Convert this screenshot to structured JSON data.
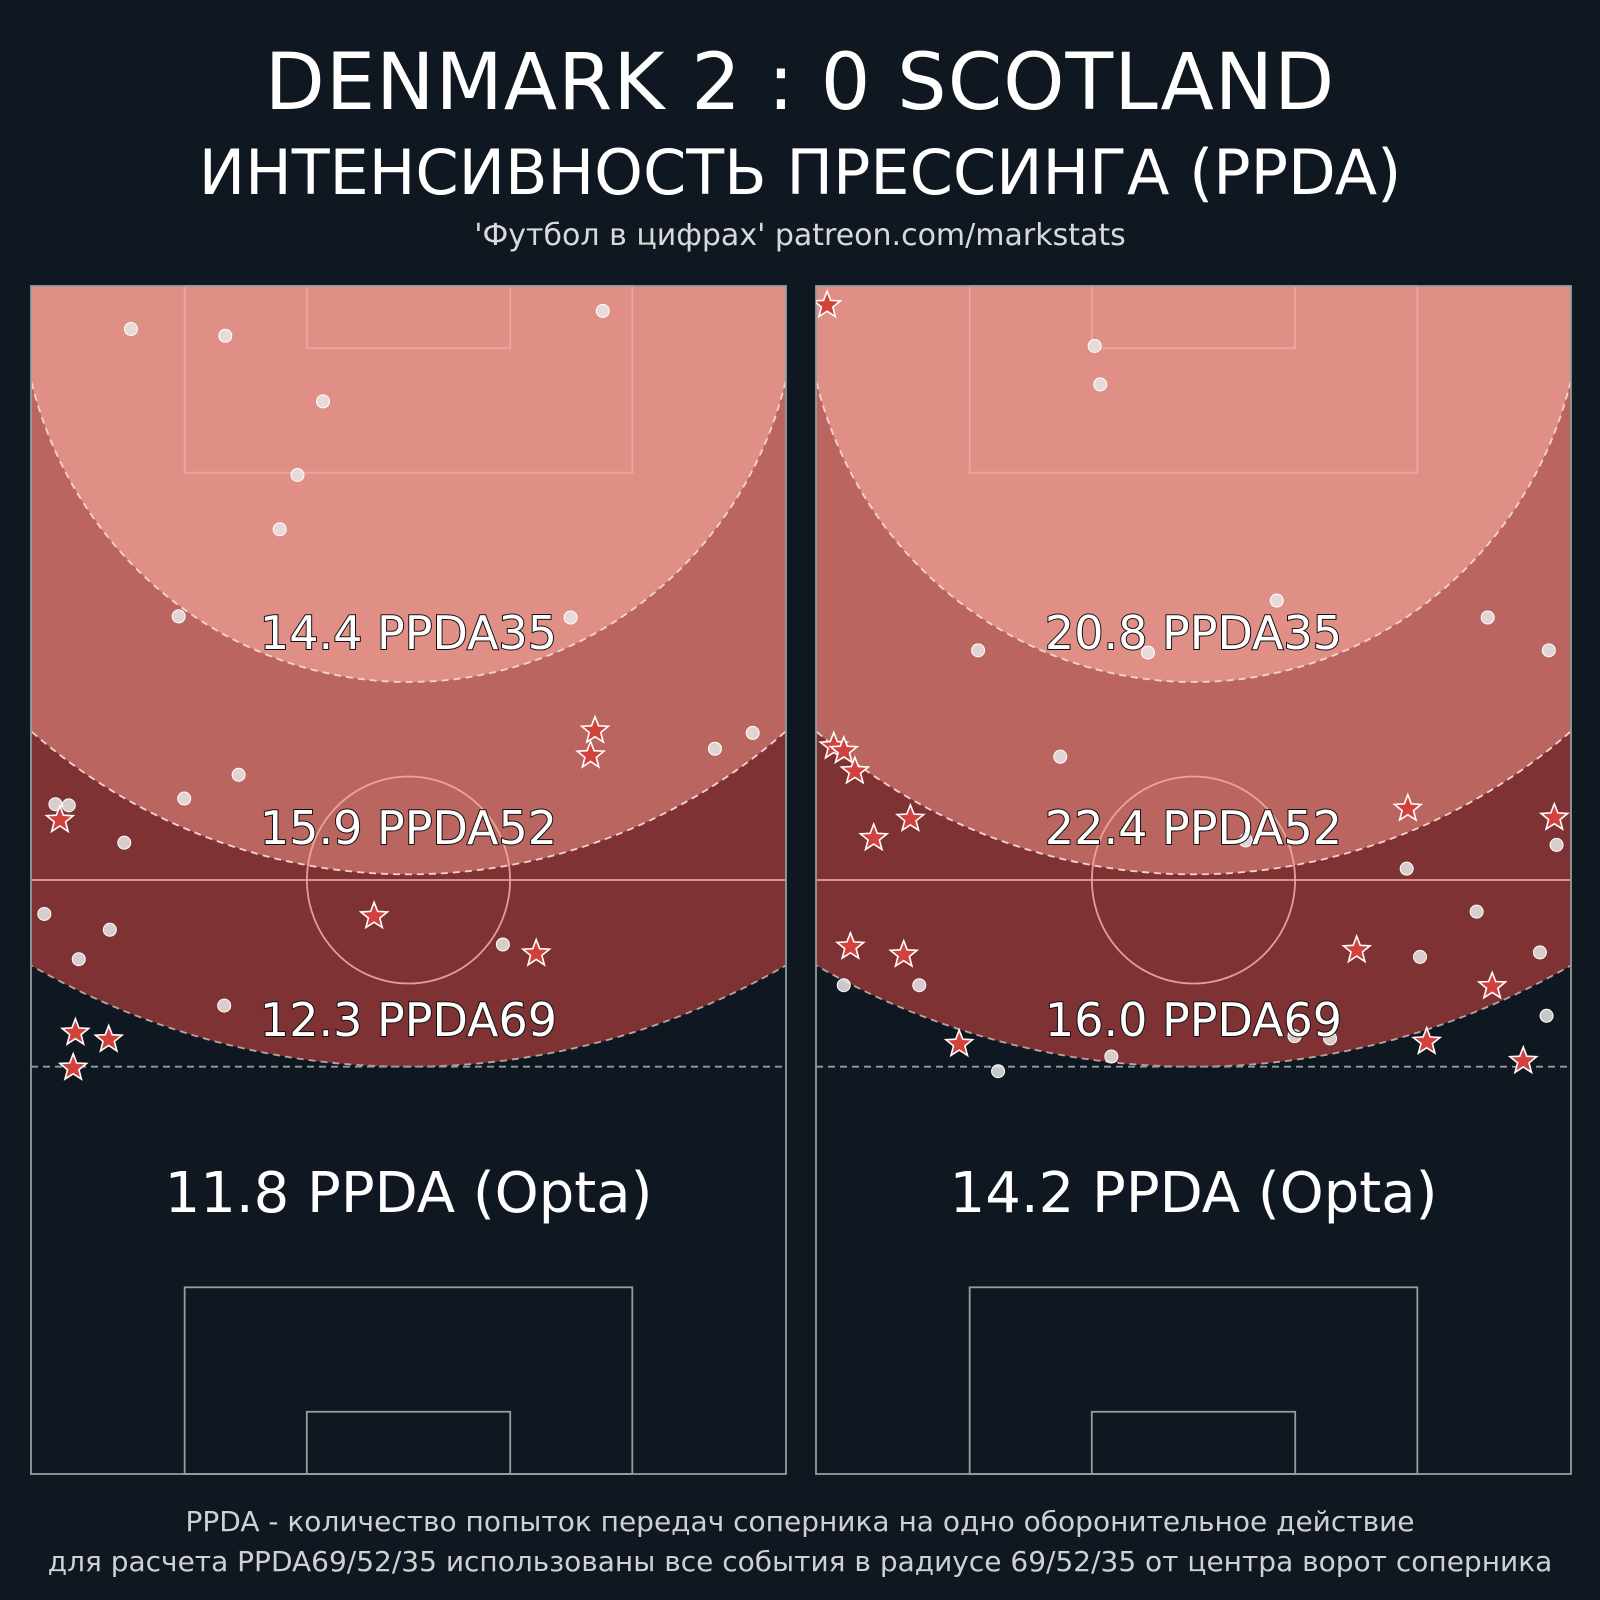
{
  "header": {
    "title": "DENMARK  2 : 0  SCOTLAND",
    "subtitle": "ИНТЕНСИВНОСТЬ ПРЕССИНГА (PPDA)",
    "credit": "'Футбол в цифрах' patreon.com/markstats"
  },
  "footer": {
    "line1": "PPDA - количество попыток передач соперника на одно оборонительное действие",
    "line2": "для расчета PPDA69/52/35 использованы все события в радиусе 69/52/35 от центра ворот соперника"
  },
  "colors": {
    "background": "#0f1821",
    "zone35": "#e08f87",
    "zone52": "#bb6561",
    "zone69": "#7e3234",
    "marker_circle": "#e8e8e8",
    "marker_star": "#d2423d",
    "pitch_lines": "#8fa0a0"
  },
  "chart_data": [
    {
      "type": "scatter",
      "team": "DENMARK",
      "zone_labels": {
        "ppda35": "14.4 PPDA35",
        "ppda52": "15.9 PPDA52",
        "ppda69": "12.3 PPDA69",
        "opta": "11.8 PPDA (Opta)"
      },
      "values": {
        "ppda35": 14.4,
        "ppda52": 15.9,
        "ppda69": 12.3,
        "opta": 11.8
      },
      "radii": [
        35,
        52,
        69
      ],
      "x_range": [
        0,
        68
      ],
      "y_range": [
        0,
        105
      ],
      "events": [
        {
          "x": 9,
          "y": 3.8,
          "kind": "circle"
        },
        {
          "x": 17.5,
          "y": 4.4,
          "kind": "circle"
        },
        {
          "x": 51.5,
          "y": 2.2,
          "kind": "circle"
        },
        {
          "x": 26.3,
          "y": 10.2,
          "kind": "circle"
        },
        {
          "x": 24,
          "y": 16.7,
          "kind": "circle"
        },
        {
          "x": 22.4,
          "y": 21.5,
          "kind": "circle"
        },
        {
          "x": 13.3,
          "y": 29.2,
          "kind": "circle"
        },
        {
          "x": 48.6,
          "y": 29.3,
          "kind": "circle"
        },
        {
          "x": 65,
          "y": 39.5,
          "kind": "circle"
        },
        {
          "x": 61.6,
          "y": 40.9,
          "kind": "circle"
        },
        {
          "x": 50.8,
          "y": 39.3,
          "kind": "star"
        },
        {
          "x": 50.4,
          "y": 41.5,
          "kind": "star"
        },
        {
          "x": 18.7,
          "y": 43.2,
          "kind": "circle"
        },
        {
          "x": 13.8,
          "y": 45.3,
          "kind": "circle"
        },
        {
          "x": 2.2,
          "y": 45.8,
          "kind": "circle"
        },
        {
          "x": 3.4,
          "y": 45.9,
          "kind": "circle"
        },
        {
          "x": 2.6,
          "y": 47.2,
          "kind": "star"
        },
        {
          "x": 8.4,
          "y": 49.2,
          "kind": "circle"
        },
        {
          "x": 1.2,
          "y": 55.5,
          "kind": "circle"
        },
        {
          "x": 7.1,
          "y": 56.9,
          "kind": "circle"
        },
        {
          "x": 30.9,
          "y": 55.7,
          "kind": "star"
        },
        {
          "x": 42.5,
          "y": 58.2,
          "kind": "circle"
        },
        {
          "x": 45.5,
          "y": 59.0,
          "kind": "star"
        },
        {
          "x": 4.3,
          "y": 59.5,
          "kind": "circle"
        },
        {
          "x": 17.4,
          "y": 63.6,
          "kind": "circle"
        },
        {
          "x": 4.0,
          "y": 66.0,
          "kind": "star"
        },
        {
          "x": 7.0,
          "y": 66.6,
          "kind": "star"
        },
        {
          "x": 3.8,
          "y": 69.1,
          "kind": "star"
        }
      ]
    },
    {
      "type": "scatter",
      "team": "SCOTLAND",
      "zone_labels": {
        "ppda35": "20.8 PPDA35",
        "ppda52": "22.4 PPDA52",
        "ppda69": "16.0 PPDA69",
        "opta": "14.2 PPDA (Opta)"
      },
      "values": {
        "ppda35": 20.8,
        "ppda52": 22.4,
        "ppda69": 16.0,
        "opta": 14.2
      },
      "radii": [
        35,
        52,
        69
      ],
      "x_range": [
        0,
        68
      ],
      "y_range": [
        0,
        105
      ],
      "events": [
        {
          "x": 1.0,
          "y": 1.7,
          "kind": "star"
        },
        {
          "x": 25.1,
          "y": 5.3,
          "kind": "circle"
        },
        {
          "x": 25.6,
          "y": 8.7,
          "kind": "circle"
        },
        {
          "x": 41.5,
          "y": 27.8,
          "kind": "circle"
        },
        {
          "x": 60.5,
          "y": 29.3,
          "kind": "circle"
        },
        {
          "x": 14.6,
          "y": 32.2,
          "kind": "circle"
        },
        {
          "x": 29.9,
          "y": 32.4,
          "kind": "circle"
        },
        {
          "x": 66.0,
          "y": 32.2,
          "kind": "circle"
        },
        {
          "x": 1.6,
          "y": 40.7,
          "kind": "star"
        },
        {
          "x": 2.5,
          "y": 41.1,
          "kind": "star"
        },
        {
          "x": 3.5,
          "y": 42.9,
          "kind": "star"
        },
        {
          "x": 22.0,
          "y": 41.6,
          "kind": "circle"
        },
        {
          "x": 53.3,
          "y": 46.2,
          "kind": "star"
        },
        {
          "x": 8.5,
          "y": 47.1,
          "kind": "star"
        },
        {
          "x": 5.2,
          "y": 48.8,
          "kind": "star"
        },
        {
          "x": 66.5,
          "y": 47.0,
          "kind": "star"
        },
        {
          "x": 66.7,
          "y": 49.4,
          "kind": "circle"
        },
        {
          "x": 38.7,
          "y": 49.0,
          "kind": "circle"
        },
        {
          "x": 53.2,
          "y": 51.5,
          "kind": "circle"
        },
        {
          "x": 59.5,
          "y": 55.3,
          "kind": "circle"
        },
        {
          "x": 3.1,
          "y": 58.4,
          "kind": "star"
        },
        {
          "x": 7.9,
          "y": 59.1,
          "kind": "star"
        },
        {
          "x": 48.7,
          "y": 58.7,
          "kind": "star"
        },
        {
          "x": 54.4,
          "y": 59.3,
          "kind": "circle"
        },
        {
          "x": 65.2,
          "y": 58.9,
          "kind": "circle"
        },
        {
          "x": 2.5,
          "y": 61.8,
          "kind": "circle"
        },
        {
          "x": 9.3,
          "y": 61.8,
          "kind": "circle"
        },
        {
          "x": 60.9,
          "y": 61.9,
          "kind": "star"
        },
        {
          "x": 65.8,
          "y": 64.5,
          "kind": "circle"
        },
        {
          "x": 43.1,
          "y": 66.3,
          "kind": "circle"
        },
        {
          "x": 46.3,
          "y": 66.5,
          "kind": "circle"
        },
        {
          "x": 55.0,
          "y": 66.8,
          "kind": "star"
        },
        {
          "x": 12.9,
          "y": 67.0,
          "kind": "star"
        },
        {
          "x": 26.6,
          "y": 68.1,
          "kind": "circle"
        },
        {
          "x": 63.7,
          "y": 68.5,
          "kind": "star"
        },
        {
          "x": 16.4,
          "y": 69.4,
          "kind": "circle"
        }
      ]
    }
  ]
}
